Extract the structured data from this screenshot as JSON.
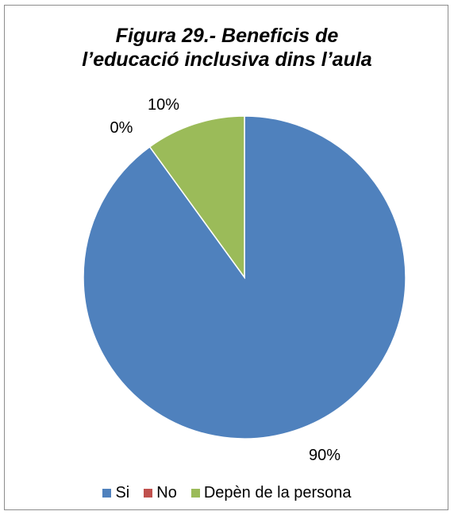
{
  "chart_data": {
    "type": "pie",
    "title_lines": [
      "Figura 29.- Beneficis de",
      "l’educació inclusiva dins l’aula"
    ],
    "categories": [
      "Si",
      "No",
      "Depèn de la persona"
    ],
    "values": [
      90,
      0,
      10
    ],
    "data_labels": [
      "90%",
      "0%",
      "10%"
    ],
    "colors": [
      "#4f81bd",
      "#c0504d",
      "#9bbb59"
    ],
    "legend_position": "bottom"
  }
}
